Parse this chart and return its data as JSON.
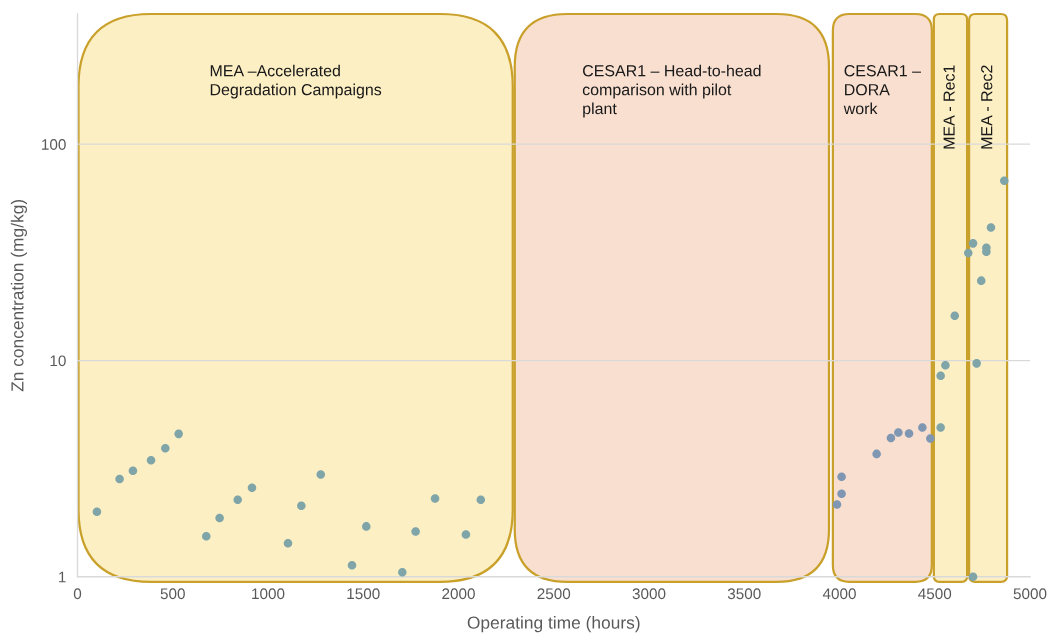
{
  "chart_data": {
    "type": "scatter",
    "xlabel": "Operating time (hours)",
    "ylabel": "Zn concentration (mg/kg)",
    "series": [
      {
        "color": "#7fa5a8",
        "x": [
          102,
          221,
          291,
          386,
          461,
          531,
          676,
          746,
          841,
          916,
          1105,
          1175,
          1277,
          1441,
          1516,
          1705,
          1775,
          1877,
          2039,
          2117,
          4531,
          4531,
          4556,
          4605,
          4676,
          4701,
          4720,
          4701,
          4744,
          4771,
          4771,
          4795,
          4865
        ],
        "values": [
          2.0,
          2.83,
          3.09,
          3.46,
          3.93,
          4.58,
          1.54,
          1.87,
          2.27,
          2.58,
          1.43,
          2.13,
          2.97,
          1.13,
          1.71,
          1.05,
          1.62,
          2.3,
          1.57,
          2.27,
          4.9,
          8.5,
          9.5,
          16.1,
          31.4,
          34.8,
          9.7,
          1.0,
          23.4,
          33.2,
          31.8,
          41.2,
          67.8
        ]
      },
      {
        "color": "#7f97b2",
        "x": [
          3987,
          4011,
          4011,
          4195,
          4270,
          4309,
          4365,
          4435,
          4477
        ],
        "values": [
          2.16,
          2.42,
          2.9,
          3.7,
          4.38,
          4.65,
          4.6,
          4.9,
          4.36
        ]
      }
    ],
    "xlim": [
      0,
      5000
    ],
    "xticks": [
      0,
      500,
      1000,
      1500,
      2000,
      2500,
      3000,
      3500,
      4000,
      4500,
      5000
    ],
    "ylim": [
      1,
      400
    ],
    "yticks": [
      1,
      10,
      100
    ],
    "log": "y",
    "grid": "y",
    "marker": "circle",
    "bands": [
      {
        "axis": "x",
        "from": 0,
        "to": 2290,
        "label": "MEA –Accelerated\nDegradation Campaigns",
        "color": "#fdefc4"
      },
      {
        "axis": "x",
        "from": 2290,
        "to": 3950,
        "label": "CESAR1 – Head-to-head\ncomparison with pilot\nplant",
        "color": "#f9dfd0"
      },
      {
        "axis": "x",
        "from": 3960,
        "to": 4490,
        "label": "CESAR1 –\nDORA\nwork",
        "color": "#f9dfd0"
      },
      {
        "axis": "x",
        "from": 4490,
        "to": 4675,
        "label": "MEA - Rec1",
        "color": "#fdefc4"
      },
      {
        "axis": "x",
        "from": 4675,
        "to": 4885,
        "label": "MEA - Rec2",
        "color": "#fdefc4"
      }
    ]
  }
}
